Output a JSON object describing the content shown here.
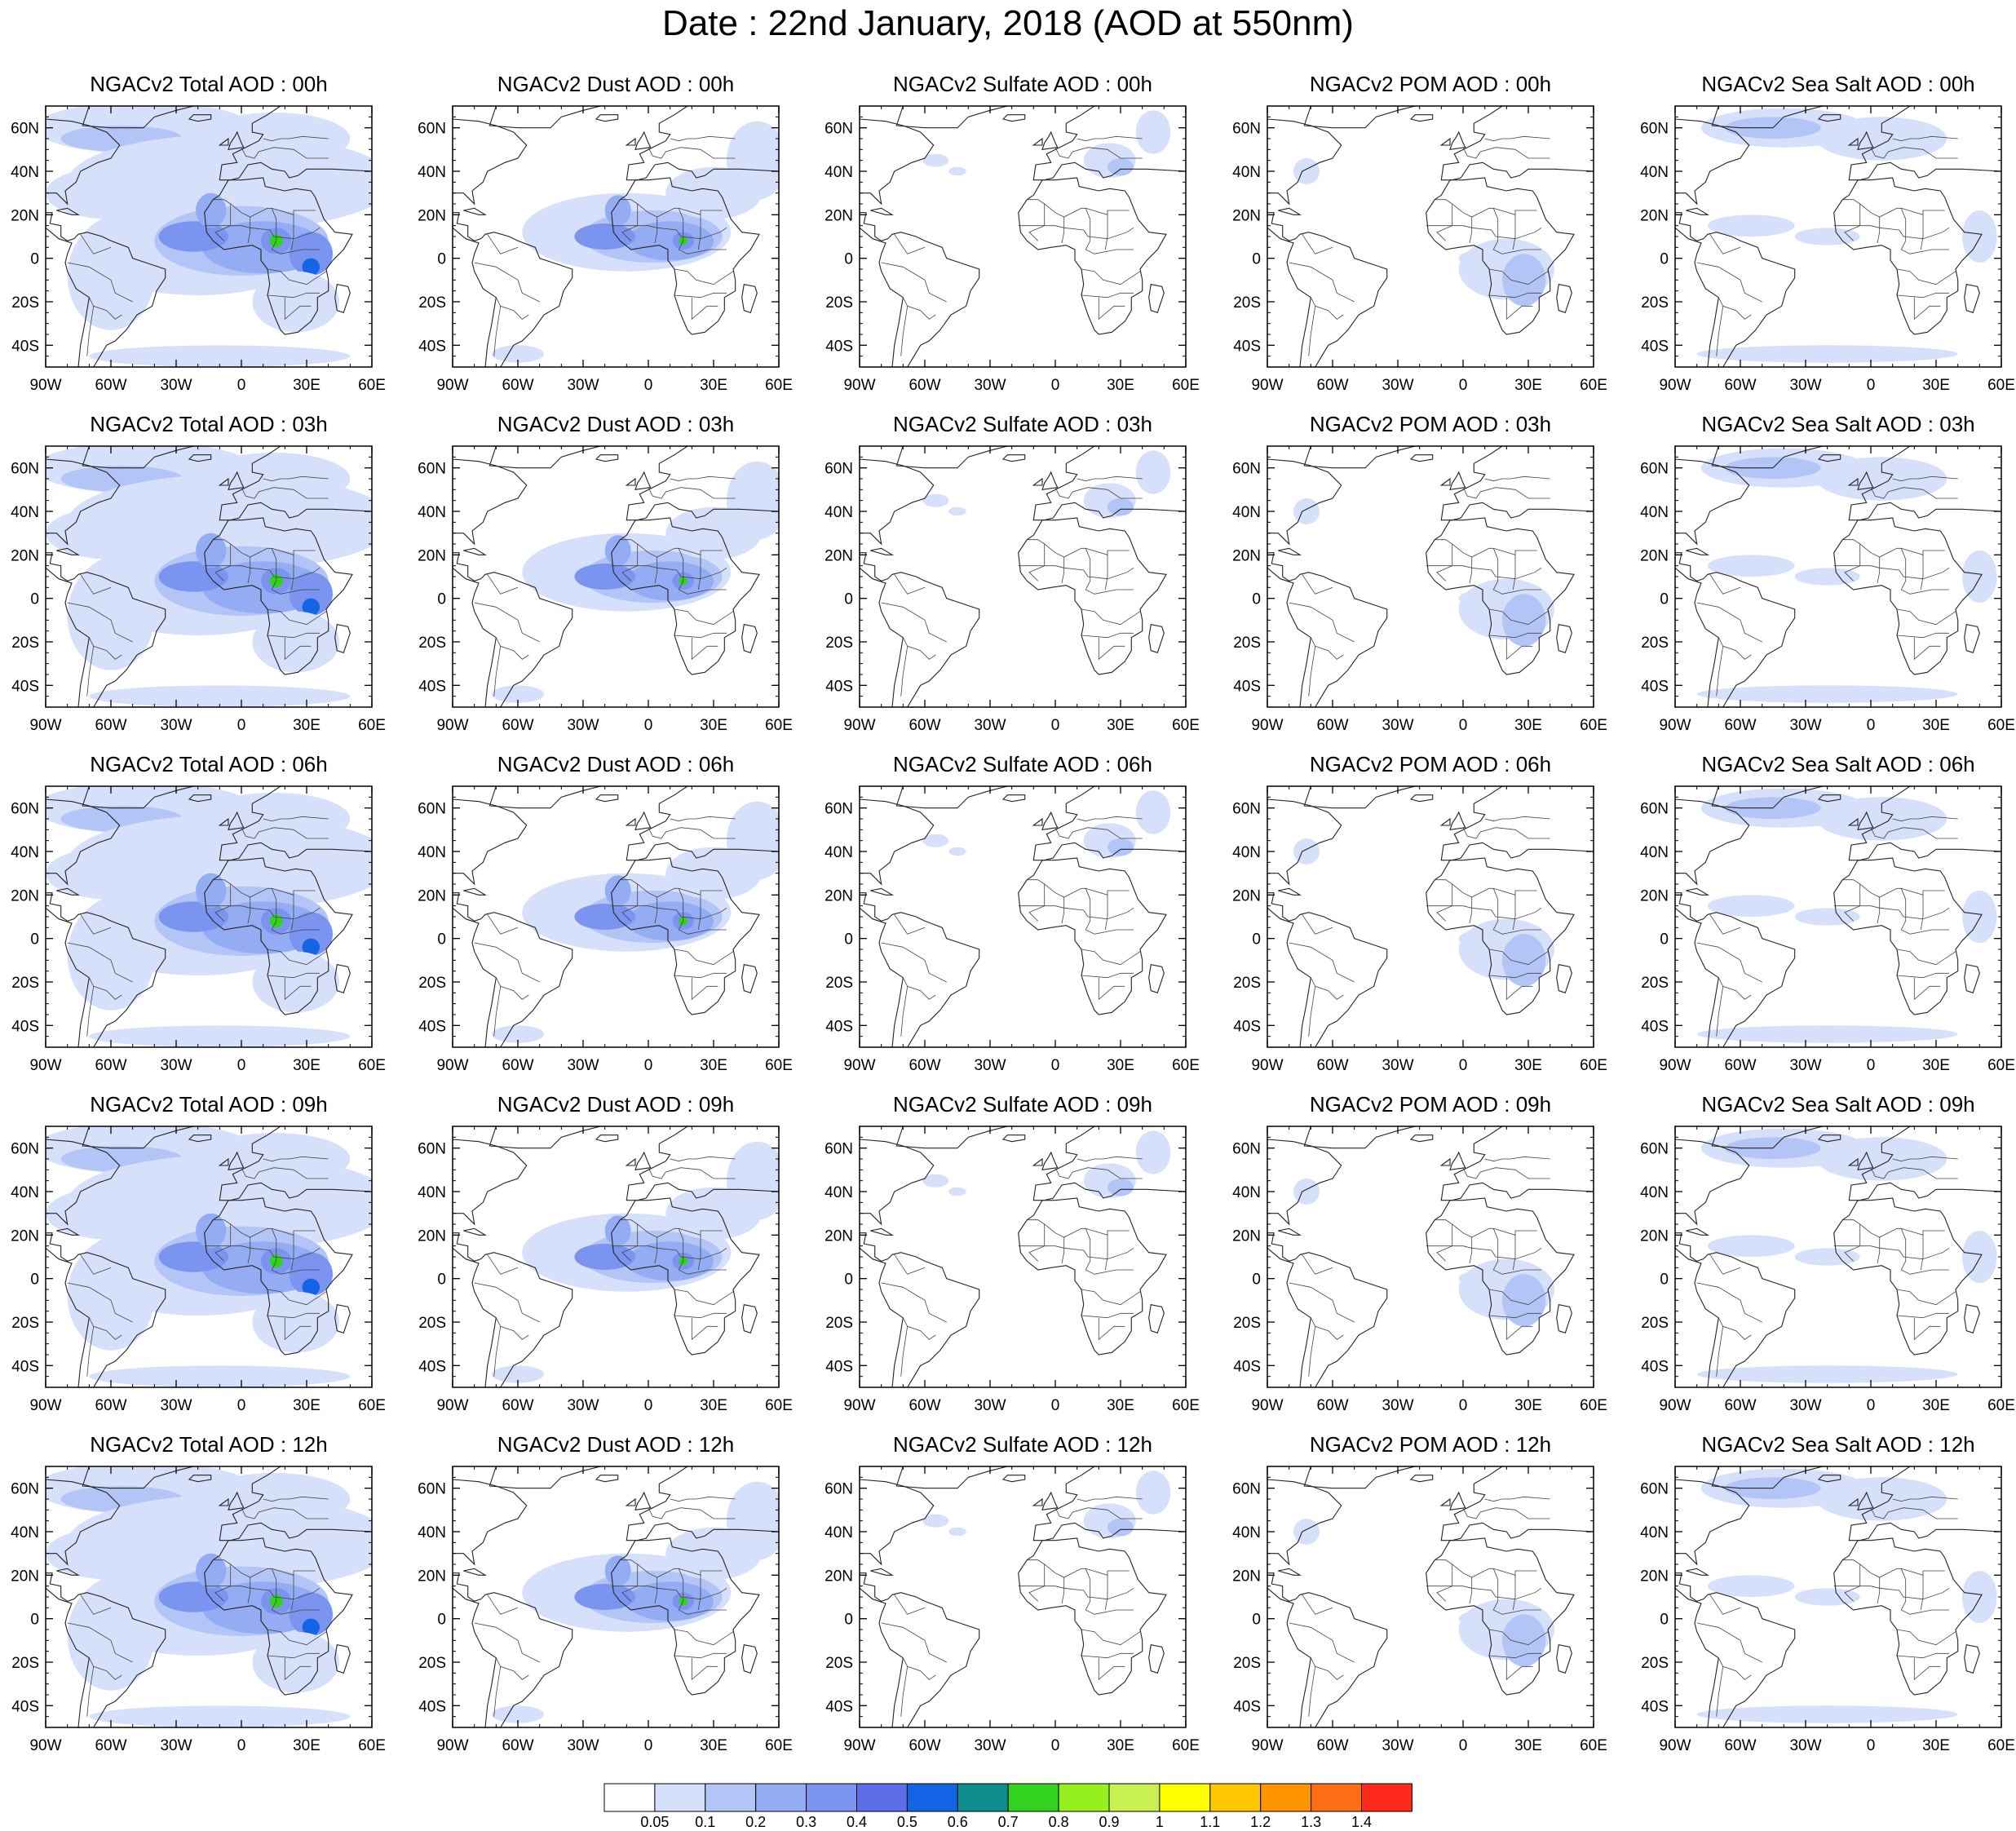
{
  "title": "Date : 22nd January, 2018 (AOD at 550nm)",
  "map": {
    "lat_ticks": [
      "60N",
      "40N",
      "20N",
      "0",
      "20S",
      "40S"
    ],
    "lat_values": [
      60,
      40,
      20,
      0,
      -20,
      -40
    ],
    "lon_ticks": [
      "90W",
      "60W",
      "30W",
      "0",
      "30E",
      "60E"
    ],
    "lon_values": [
      -90,
      -60,
      -30,
      0,
      30,
      60
    ],
    "lon_range": [
      -90,
      60
    ],
    "lat_range": [
      -50,
      70
    ]
  },
  "species": [
    "Total",
    "Dust",
    "Sulfate",
    "POM",
    "Sea Salt"
  ],
  "hours": [
    "00h",
    "03h",
    "06h",
    "09h",
    "12h"
  ],
  "panel_titles": [
    [
      "NGACv2 Total AOD : 00h",
      "NGACv2 Dust AOD : 00h",
      "NGACv2 Sulfate AOD : 00h",
      "NGACv2 POM AOD : 00h",
      "NGACv2 Sea Salt AOD : 00h"
    ],
    [
      "NGACv2 Total AOD : 03h",
      "NGACv2 Dust AOD : 03h",
      "NGACv2 Sulfate AOD : 03h",
      "NGACv2 POM AOD : 03h",
      "NGACv2 Sea Salt AOD : 03h"
    ],
    [
      "NGACv2 Total AOD : 06h",
      "NGACv2 Dust AOD : 06h",
      "NGACv2 Sulfate AOD : 06h",
      "NGACv2 POM AOD : 06h",
      "NGACv2 Sea Salt AOD : 06h"
    ],
    [
      "NGACv2 Total AOD : 09h",
      "NGACv2 Dust AOD : 09h",
      "NGACv2 Sulfate AOD : 09h",
      "NGACv2 POM AOD : 09h",
      "NGACv2 Sea Salt  AOD : 09h"
    ],
    [
      "NGACv2 Total AOD  : 12h",
      "NGACv2 Dust AOD : 12h",
      "NGACv2 Sulfate AOD : 12h",
      "NGACv2 POM  AOD : 12h",
      "NGACv2 Sea Salt  AOD : 12h"
    ]
  ],
  "colorbar": {
    "labels": [
      "0.05",
      "0.1",
      "0.2",
      "0.3",
      "0.4",
      "0.5",
      "0.6",
      "0.7",
      "0.8",
      "0.9",
      "1",
      "1.1",
      "1.2",
      "1.3",
      "1.4"
    ],
    "colors": [
      "#ffffff",
      "#d6e0fa",
      "#b3c5f6",
      "#94acf4",
      "#7b94f0",
      "#5d6fe8",
      "#1464e6",
      "#0e8e8e",
      "#32d21e",
      "#96f01e",
      "#c8f050",
      "#ffff00",
      "#ffc800",
      "#ff9600",
      "#ff6e14",
      "#ff2a1e"
    ]
  }
}
